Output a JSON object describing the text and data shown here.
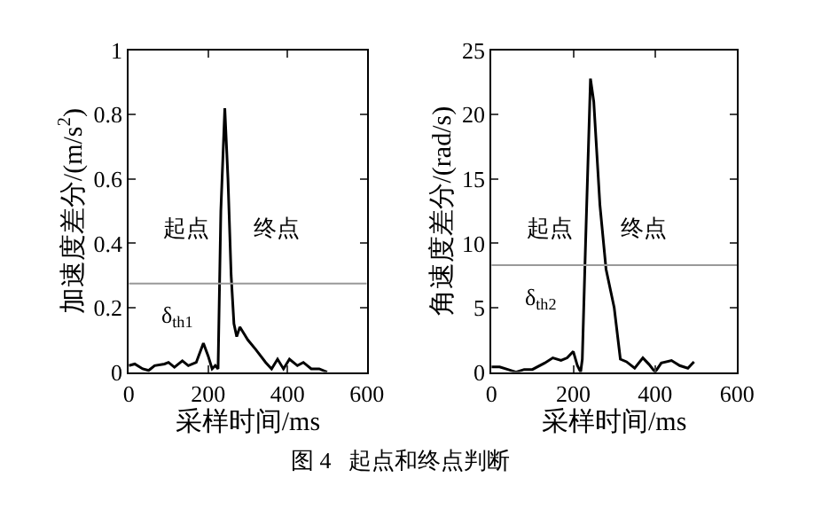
{
  "chart_data": [
    {
      "type": "line",
      "xlabel": "采样时间/ms",
      "ylabel": "加速度差分/(m/s$^{2}$)",
      "xlim": [
        0,
        600
      ],
      "ylim": [
        0,
        1
      ],
      "xticks": [
        0,
        200,
        400,
        600
      ],
      "yticks": [
        0,
        0.2,
        0.4,
        0.6,
        0.8,
        1
      ],
      "series": [
        {
          "color": "#000000",
          "x": [
            0,
            15,
            35,
            50,
            65,
            90,
            100,
            115,
            135,
            150,
            170,
            188,
            200,
            210,
            218,
            225,
            232,
            242,
            250,
            258,
            265,
            272,
            280,
            290,
            300,
            320,
            345,
            360,
            375,
            390,
            405,
            425,
            440,
            460,
            480,
            500
          ],
          "values": [
            0.02,
            0.025,
            0.01,
            0.005,
            0.02,
            0.025,
            0.03,
            0.015,
            0.035,
            0.02,
            0.03,
            0.09,
            0.05,
            0.01,
            0.02,
            0.01,
            0.5,
            0.82,
            0.6,
            0.3,
            0.15,
            0.11,
            0.14,
            0.12,
            0.1,
            0.07,
            0.03,
            0.01,
            0.04,
            0.01,
            0.04,
            0.02,
            0.03,
            0.01,
            0.01,
            0
          ]
        }
      ],
      "ref_lines": [
        {
          "axis": "y",
          "value": 0.275,
          "color": "#999999",
          "label": "δ$_{th1}$"
        }
      ],
      "annotations": [
        "起点",
        "终点",
        "图 4   起点和终点判断"
      ]
    },
    {
      "type": "line",
      "xlabel": "采样时间/ms",
      "ylabel": "角速度差分/(rad/s)",
      "xlim": [
        0,
        600
      ],
      "ylim": [
        0,
        25
      ],
      "xticks": [
        0,
        200,
        400,
        600
      ],
      "yticks": [
        0,
        5,
        10,
        15,
        20,
        25
      ],
      "series": [
        {
          "color": "#000000",
          "x": [
            0,
            20,
            40,
            60,
            80,
            100,
            130,
            150,
            170,
            185,
            200,
            210,
            218,
            222,
            230,
            242,
            250,
            265,
            280,
            300,
            315,
            330,
            350,
            370,
            385,
            400,
            415,
            440,
            460,
            480,
            495
          ],
          "values": [
            0.4,
            0.4,
            0.2,
            0,
            0.2,
            0.2,
            0.7,
            1.1,
            0.9,
            1.1,
            1.6,
            0.5,
            0,
            1,
            10,
            22.8,
            21,
            13,
            8,
            5,
            1,
            0.8,
            0.3,
            1.1,
            0.6,
            0,
            0.7,
            0.9,
            0.5,
            0.3,
            0.8
          ]
        }
      ],
      "ref_lines": [
        {
          "axis": "y",
          "value": 8.3,
          "color": "#999999",
          "label": "δ$_{th2}$"
        }
      ],
      "annotations": [
        "起点",
        "终点"
      ]
    }
  ]
}
